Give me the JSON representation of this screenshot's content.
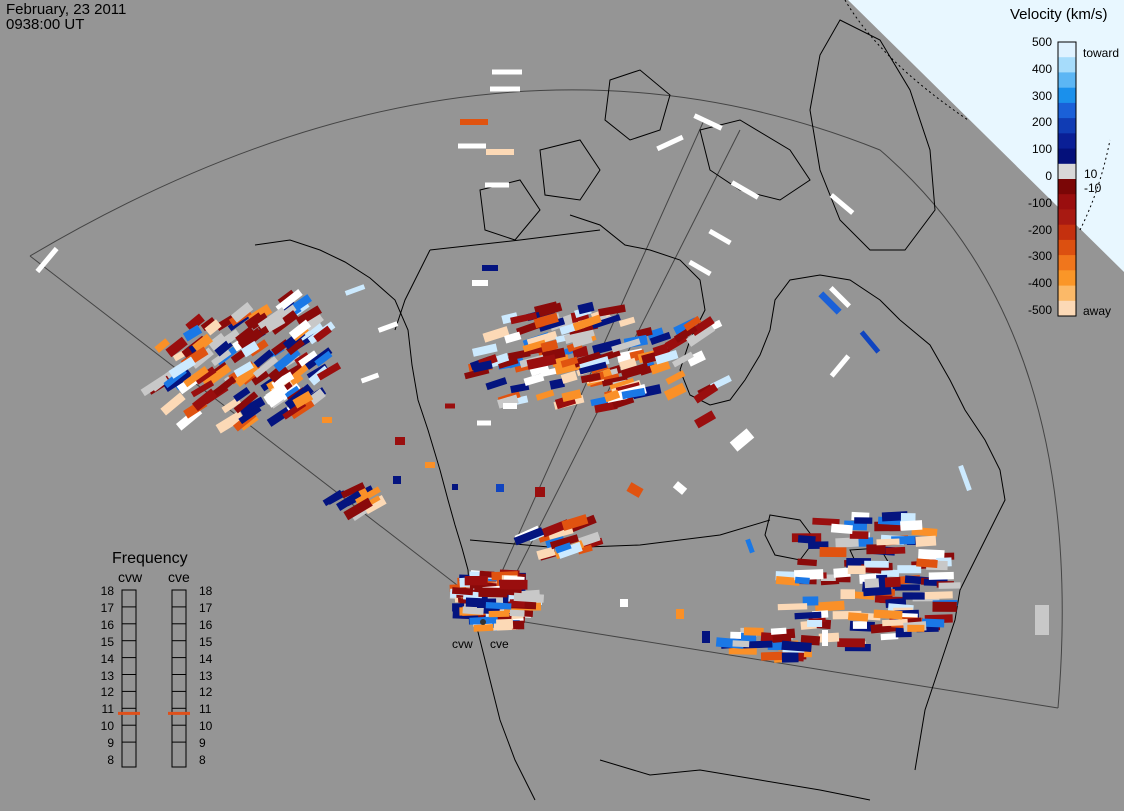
{
  "header": {
    "date": "February, 23 2011",
    "time": "0938:00 UT"
  },
  "colorbar": {
    "title": "Velocity (km/s)",
    "tick_labels": [
      "500",
      "400",
      "300",
      "200",
      "100",
      "0",
      "-100",
      "-200",
      "-300",
      "-400",
      "-500"
    ],
    "small_labels": [
      "10",
      "-10"
    ],
    "toward_label": "toward",
    "away_label": "away",
    "colors": [
      "#fcd9b6",
      "#fa9028",
      "#e05310",
      "#b92a0c",
      "#8a0a0a",
      "#c8c8c8",
      "#04147f",
      "#1044c0",
      "#1a78e6",
      "#5cb6f4",
      "#cceaff"
    ]
  },
  "frequency": {
    "title": "Frequency",
    "radars": [
      "cvw",
      "cve"
    ],
    "scale": [
      "18",
      "17",
      "16",
      "15",
      "14",
      "13",
      "12",
      "11",
      "10",
      "9",
      "8"
    ],
    "cvw_mhz": 10.7,
    "cve_mhz": 10.7,
    "indicator_color": "#e0501a"
  },
  "stations": {
    "cvw": "cvw",
    "cve": "cve"
  },
  "map": {
    "background": "#959595",
    "daylight": "#e8f7ff",
    "coast": "#000000",
    "fov_line": "#404040"
  }
}
